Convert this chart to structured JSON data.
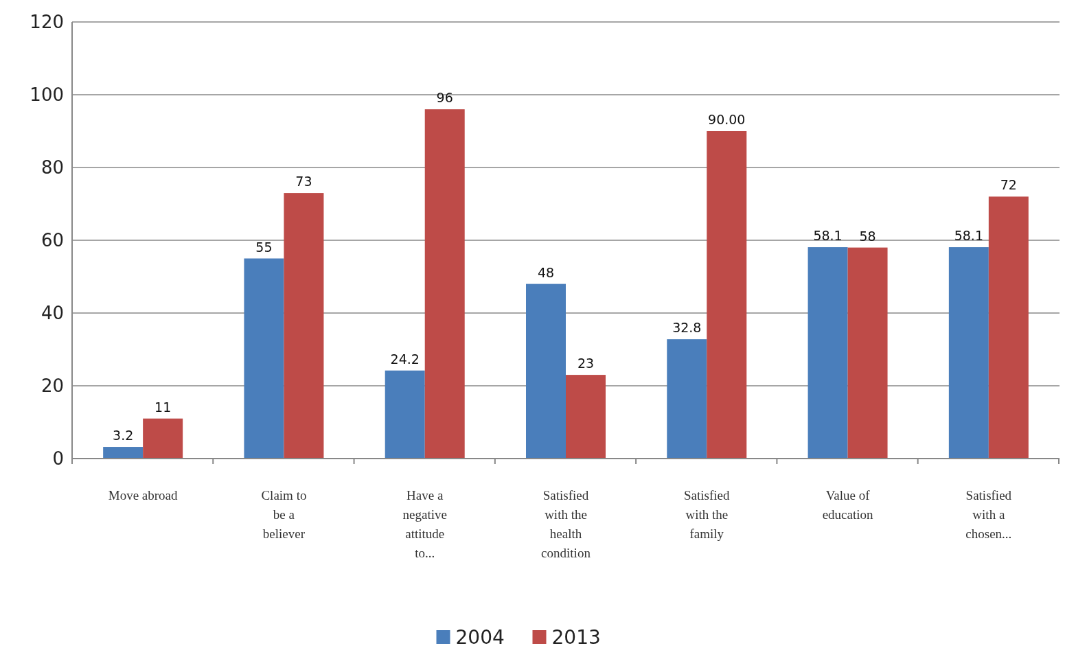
{
  "chart_data": {
    "type": "bar",
    "categories": [
      "Move abroad",
      "Claim to be a believer",
      "Have a negative attitude to...",
      "Satisfied with the health condition",
      "Satisfied with the family",
      "Value of education",
      "Satisfied with a chosen..."
    ],
    "series": [
      {
        "name": "2004",
        "color": "#4a7ebb",
        "values": [
          3.2,
          55,
          24.2,
          48,
          32.8,
          58.1,
          58.1
        ],
        "value_labels": [
          "3.2",
          "55",
          "24.2",
          "48",
          "32.8",
          "58.1",
          "58.1"
        ]
      },
      {
        "name": "2013",
        "color": "#be4b48",
        "values": [
          11,
          73,
          96,
          23,
          90,
          58,
          72
        ],
        "value_labels": [
          "11",
          "73",
          "96",
          "23",
          "90.00",
          "58",
          "72"
        ]
      }
    ],
    "ylim": [
      0,
      120
    ],
    "yticks": [
      0,
      20,
      40,
      60,
      80,
      100,
      120
    ],
    "grid": "y",
    "legend": "bottom"
  }
}
